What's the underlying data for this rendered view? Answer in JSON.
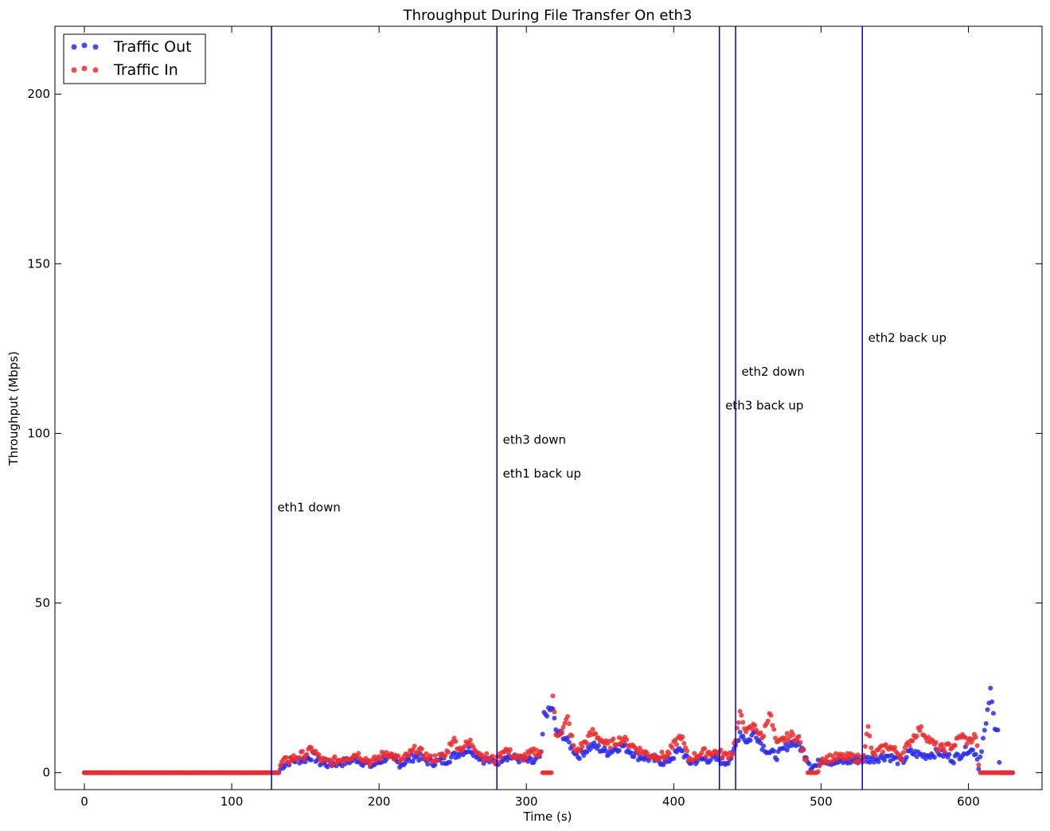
{
  "chart_data": {
    "type": "scatter",
    "title": "Throughput During File Transfer On eth3",
    "xlabel": "Time (s)",
    "ylabel": "Throughput (Mbps)",
    "xlim": [
      -20,
      650
    ],
    "ylim": [
      -5,
      220
    ],
    "x_ticks": [
      0,
      100,
      200,
      300,
      400,
      500,
      600
    ],
    "y_ticks": [
      0,
      50,
      100,
      150,
      200
    ],
    "grid": false,
    "legend_position": "top-left",
    "series": [
      {
        "name": "Traffic Out",
        "color": "#2b2bf0",
        "anchors": [
          [
            0,
            0
          ],
          [
            127,
            0
          ],
          [
            132,
            0
          ],
          [
            134,
            2
          ],
          [
            140,
            3.5
          ],
          [
            150,
            4
          ],
          [
            155,
            5
          ],
          [
            160,
            3
          ],
          [
            165,
            2.5
          ],
          [
            175,
            3
          ],
          [
            185,
            4
          ],
          [
            195,
            2
          ],
          [
            205,
            4.5
          ],
          [
            215,
            2.5
          ],
          [
            225,
            5
          ],
          [
            235,
            3
          ],
          [
            245,
            3.5
          ],
          [
            255,
            6
          ],
          [
            262,
            7
          ],
          [
            270,
            4
          ],
          [
            280,
            3
          ],
          [
            285,
            5
          ],
          [
            295,
            4
          ],
          [
            305,
            3
          ],
          [
            310,
            5
          ],
          [
            312,
            17
          ],
          [
            315,
            18
          ],
          [
            318,
            19
          ],
          [
            320,
            12
          ],
          [
            325,
            11
          ],
          [
            330,
            8
          ],
          [
            335,
            5
          ],
          [
            345,
            8
          ],
          [
            355,
            6
          ],
          [
            365,
            8
          ],
          [
            375,
            5
          ],
          [
            385,
            4
          ],
          [
            395,
            3
          ],
          [
            405,
            7
          ],
          [
            410,
            3
          ],
          [
            420,
            4
          ],
          [
            430,
            4
          ],
          [
            435,
            3
          ],
          [
            440,
            5
          ],
          [
            445,
            12
          ],
          [
            450,
            9
          ],
          [
            455,
            12
          ],
          [
            460,
            8
          ],
          [
            465,
            6
          ],
          [
            470,
            5
          ],
          [
            475,
            7
          ],
          [
            480,
            9
          ],
          [
            485,
            8
          ],
          [
            490,
            5
          ],
          [
            493,
            2
          ],
          [
            497,
            2
          ],
          [
            500,
            4
          ],
          [
            510,
            3
          ],
          [
            520,
            3.5
          ],
          [
            528,
            4
          ],
          [
            535,
            4
          ],
          [
            545,
            5
          ],
          [
            555,
            3
          ],
          [
            560,
            6
          ],
          [
            570,
            5
          ],
          [
            580,
            6
          ],
          [
            590,
            4
          ],
          [
            600,
            7
          ],
          [
            605,
            6
          ],
          [
            607,
            2
          ],
          [
            610,
            10
          ],
          [
            612,
            14
          ],
          [
            614,
            21
          ],
          [
            615,
            24
          ],
          [
            617,
            17
          ],
          [
            618,
            14
          ],
          [
            620,
            13
          ],
          [
            621,
            3
          ],
          [
            622,
            0
          ],
          [
            630,
            0
          ]
        ]
      },
      {
        "name": "Traffic In",
        "color": "#f02b2b",
        "anchors": [
          [
            0,
            0
          ],
          [
            127,
            0
          ],
          [
            132,
            0
          ],
          [
            134,
            3
          ],
          [
            140,
            4
          ],
          [
            150,
            5.5
          ],
          [
            155,
            7
          ],
          [
            160,
            4
          ],
          [
            165,
            3
          ],
          [
            175,
            4
          ],
          [
            185,
            5.5
          ],
          [
            195,
            3
          ],
          [
            205,
            6
          ],
          [
            215,
            3.5
          ],
          [
            225,
            7
          ],
          [
            235,
            4
          ],
          [
            245,
            5
          ],
          [
            250,
            10
          ],
          [
            255,
            7
          ],
          [
            262,
            9
          ],
          [
            270,
            5
          ],
          [
            280,
            3.5
          ],
          [
            285,
            7
          ],
          [
            295,
            4
          ],
          [
            305,
            6
          ],
          [
            310,
            6
          ],
          [
            311,
            0
          ],
          [
            317,
            0
          ],
          [
            318,
            23
          ],
          [
            320,
            11
          ],
          [
            325,
            13
          ],
          [
            328,
            16
          ],
          [
            333,
            6
          ],
          [
            340,
            9
          ],
          [
            345,
            12
          ],
          [
            355,
            8
          ],
          [
            365,
            10
          ],
          [
            375,
            7
          ],
          [
            385,
            5
          ],
          [
            395,
            5
          ],
          [
            405,
            11
          ],
          [
            410,
            4
          ],
          [
            420,
            6
          ],
          [
            430,
            6
          ],
          [
            435,
            5
          ],
          [
            440,
            6
          ],
          [
            445,
            17
          ],
          [
            450,
            12
          ],
          [
            455,
            14
          ],
          [
            460,
            10
          ],
          [
            465,
            18
          ],
          [
            470,
            8
          ],
          [
            475,
            10
          ],
          [
            480,
            11
          ],
          [
            485,
            10
          ],
          [
            490,
            3
          ],
          [
            491,
            0
          ],
          [
            497,
            0
          ],
          [
            500,
            4
          ],
          [
            510,
            4.5
          ],
          [
            520,
            4.5
          ],
          [
            528,
            4
          ],
          [
            532,
            13
          ],
          [
            535,
            5
          ],
          [
            545,
            8
          ],
          [
            555,
            5
          ],
          [
            560,
            9
          ],
          [
            567,
            13
          ],
          [
            575,
            9
          ],
          [
            580,
            7
          ],
          [
            590,
            8
          ],
          [
            595,
            11
          ],
          [
            600,
            9
          ],
          [
            605,
            11
          ],
          [
            607,
            3
          ],
          [
            608,
            0
          ],
          [
            630,
            0
          ]
        ]
      }
    ],
    "annotations": [
      {
        "x": 127,
        "label": "eth1 down",
        "label_x": 131,
        "label_y": 77
      },
      {
        "x": 280,
        "label": "eth3 down",
        "label_x": 284,
        "label_y": 97
      },
      {
        "x": 280,
        "label": "eth1 back up",
        "label_x": 284,
        "label_y": 87
      },
      {
        "x": 431,
        "label": "eth3 back up",
        "label_x": 435,
        "label_y": 107
      },
      {
        "x": 442,
        "label": "eth2 down",
        "label_x": 446,
        "label_y": 117
      },
      {
        "x": 528,
        "label": "eth2 back up",
        "label_x": 532,
        "label_y": 127
      }
    ],
    "vlines": [
      127,
      280,
      431,
      442,
      528
    ]
  }
}
